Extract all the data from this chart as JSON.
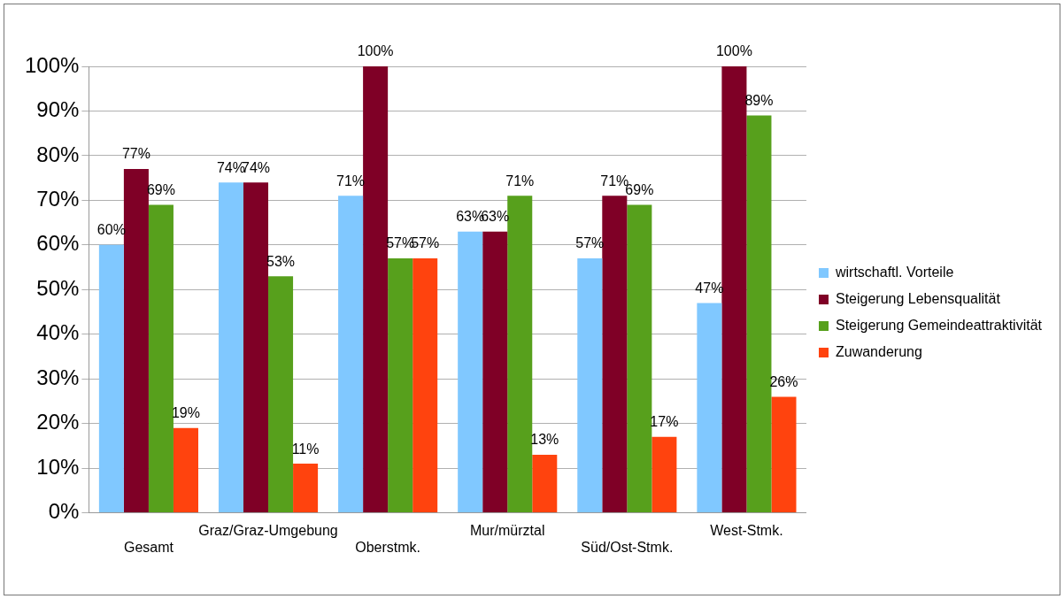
{
  "chart_data": {
    "type": "bar",
    "categories": [
      "Gesamt",
      "Graz/Graz-Umgebung",
      "Oberstmk.",
      "Mur/mürztal",
      "Süd/Ost-Stmk.",
      "West-Stmk."
    ],
    "series": [
      {
        "name": "wirtschaftl. Vorteile",
        "color": "#80c8ff",
        "values": [
          60,
          74,
          71,
          63,
          57,
          47
        ],
        "value_labels": [
          "60%",
          "74%",
          "71%",
          "63%",
          "57%",
          "47%"
        ]
      },
      {
        "name": "Steigerung Lebensqualität",
        "color": "#7f0026",
        "values": [
          77,
          74,
          100,
          63,
          71,
          100
        ],
        "value_labels": [
          "77%",
          "74%",
          "100%",
          "63%",
          "71%",
          "100%"
        ]
      },
      {
        "name": "Steigerung Gemeindeattraktivität",
        "color": "#57a01c",
        "values": [
          69,
          53,
          57,
          71,
          69,
          89
        ],
        "value_labels": [
          "69%",
          "53%",
          "57%",
          "71%",
          "69%",
          "89%"
        ]
      },
      {
        "name": "Zuwanderung",
        "color": "#ff430e",
        "values": [
          19,
          11,
          57,
          13,
          17,
          26
        ],
        "value_labels": [
          "19%",
          "11%",
          "57%",
          "13%",
          "17%",
          "26%"
        ]
      }
    ],
    "ylim": [
      0,
      100
    ],
    "yticks": [
      {
        "value": 0,
        "label": "0%"
      },
      {
        "value": 10,
        "label": "10%"
      },
      {
        "value": 20,
        "label": "20%"
      },
      {
        "value": 30,
        "label": "30%"
      },
      {
        "value": 40,
        "label": "40%"
      },
      {
        "value": 50,
        "label": "50%"
      },
      {
        "value": 60,
        "label": "60%"
      },
      {
        "value": 70,
        "label": "70%"
      },
      {
        "value": 80,
        "label": "80%"
      },
      {
        "value": 90,
        "label": "90%"
      },
      {
        "value": 100,
        "label": "100%"
      }
    ],
    "grid": "y",
    "legend": "right"
  }
}
